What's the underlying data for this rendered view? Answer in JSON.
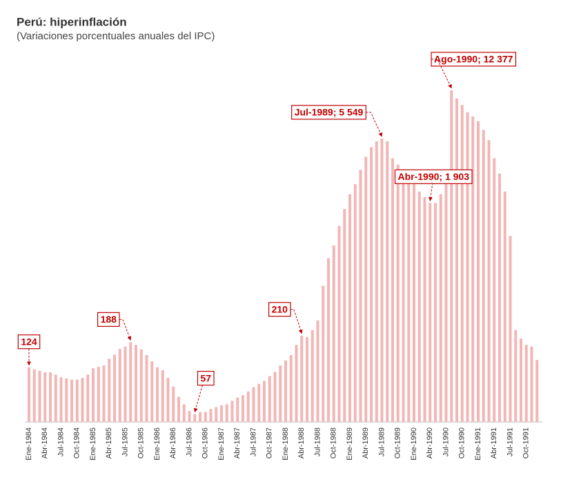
{
  "chart_data": {
    "type": "bar",
    "title": "Perú: hiperinflación",
    "subtitle": "(Variaciones porcentuales anuales del IPC)",
    "categories": [
      "Ene-1984",
      null,
      null,
      "Abr-1984",
      null,
      null,
      "Jul-1984",
      null,
      null,
      "Oct-1984",
      null,
      null,
      "Ene-1985",
      null,
      null,
      "Abr-1985",
      null,
      null,
      "Jul-1985",
      null,
      null,
      "Oct-1985",
      null,
      null,
      "Ene-1986",
      null,
      null,
      "Abr-1986",
      null,
      null,
      "Jul-1986",
      null,
      null,
      "Oct-1986",
      null,
      null,
      "Ene-1987",
      null,
      null,
      "Abr-1987",
      null,
      null,
      "Jul-1987",
      null,
      null,
      "Oct-1987",
      null,
      null,
      "Ene-1988",
      null,
      null,
      "Abr-1988",
      null,
      null,
      "Jul-1988",
      null,
      null,
      "Oct-1988",
      null,
      null,
      "Ene-1989",
      null,
      null,
      "Abr-1989",
      null,
      null,
      "Jul-1989",
      null,
      null,
      "Oct-1989",
      null,
      null,
      "Ene-1990",
      null,
      null,
      "Abr-1990",
      null,
      null,
      "Jul-1990",
      null,
      null,
      "Oct-1990",
      null,
      null,
      "Ene-1991",
      null,
      null,
      "Abr-1991",
      null,
      null,
      "Jul-1991",
      null,
      null,
      "Oct-1991",
      null,
      null
    ],
    "values": [
      124,
      120,
      117,
      114,
      114,
      110,
      105,
      103,
      101,
      101,
      104,
      110,
      122,
      125,
      128,
      143,
      153,
      168,
      175,
      188,
      180,
      167,
      152,
      137,
      124,
      118,
      104,
      90,
      76,
      67,
      60,
      57,
      59,
      59,
      62,
      64,
      66,
      67,
      71,
      75,
      78,
      83,
      89,
      94,
      99,
      107,
      115,
      128,
      139,
      152,
      180,
      210,
      205,
      230,
      270,
      480,
      760,
      940,
      1300,
      1720,
      2200,
      2600,
      3300,
      4100,
      4800,
      5300,
      5549,
      5300,
      4000,
      3600,
      3000,
      2800,
      2600,
      2300,
      2100,
      1903,
      1900,
      2200,
      3000,
      12377,
      10800,
      9700,
      8600,
      8000,
      7400,
      6400,
      5400,
      4000,
      3100,
      2300,
      1100,
      230,
      200,
      180,
      175,
      140
    ],
    "value_labels": [
      "124",
      null,
      null,
      null,
      null,
      null,
      null,
      null,
      null,
      null,
      null,
      null,
      null,
      null,
      null,
      null,
      null,
      null,
      null,
      "188",
      null,
      null,
      null,
      null,
      null,
      null,
      null,
      null,
      null,
      null,
      null,
      "57",
      null,
      null,
      null,
      null,
      null,
      null,
      null,
      null,
      null,
      null,
      null,
      null,
      null,
      null,
      null,
      null,
      null,
      null,
      null,
      "210",
      null,
      null,
      null,
      null,
      null,
      null,
      null,
      null,
      null,
      null,
      null,
      null,
      null,
      null,
      "Jul-1989; 5 549",
      null,
      null,
      null,
      null,
      null,
      null,
      null,
      null,
      "Abr-1990; 1 903",
      null,
      null,
      null,
      "Ago-1990; 12 377",
      null,
      null,
      null,
      null,
      null,
      null,
      null,
      null,
      null,
      null,
      null,
      null,
      null,
      null,
      null,
      null
    ],
    "color": "#f2b6b6",
    "label_color": "#c00000",
    "ylim": [
      50,
      20000
    ],
    "log_scale": true
  }
}
